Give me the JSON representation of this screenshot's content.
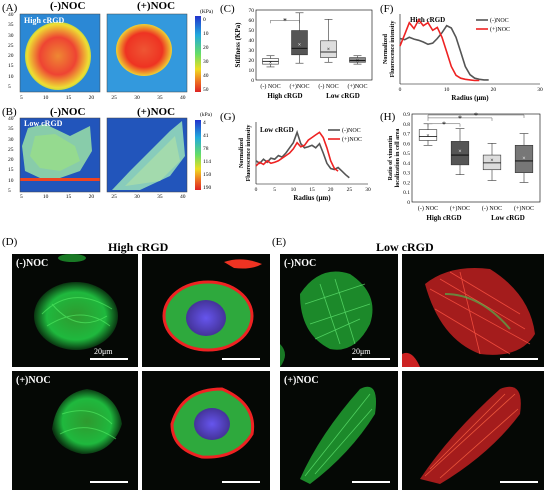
{
  "panels": {
    "A": {
      "label": "(A)",
      "title_left": "(-)NOC",
      "title_right": "(+)NOC",
      "inset": "High cRGD",
      "unit": "(KPa)",
      "colorbar_ticks": [
        "0",
        "10",
        "20",
        "30",
        "40",
        "50"
      ],
      "axis_ticks_x": [
        "5",
        "10",
        "15",
        "20",
        "25",
        "30",
        "35",
        "40"
      ],
      "axis_ticks_y": [
        "40",
        "35",
        "30",
        "25",
        "20",
        "15",
        "10",
        "5"
      ]
    },
    "B": {
      "label": "(B)",
      "title_left": "(-)NOC",
      "title_right": "(+)NOC",
      "inset": "Low cRGD",
      "unit": "(kPa)",
      "colorbar_ticks": [
        "4",
        "41",
        "78",
        "114",
        "150",
        "190"
      ],
      "axis_ticks_x": [
        "5",
        "10",
        "15",
        "20",
        "25",
        "30",
        "35",
        "40"
      ],
      "axis_ticks_y": [
        "40",
        "35",
        "30",
        "25",
        "20",
        "15",
        "10",
        "5"
      ]
    },
    "D": {
      "label": "(D)",
      "title": "High cRGD",
      "row_top": "(-)NOC",
      "row_bottom": "(+)NOC",
      "scale": "20μm"
    },
    "E": {
      "label": "(E)",
      "title": "Low cRGD",
      "row_top": "(-)NOC",
      "row_bottom": "(+)NOC",
      "scale": "20μm"
    }
  },
  "chart_data": [
    {
      "panel": "(C)",
      "type": "box",
      "ylabel": "Stiffness (KPa)",
      "ylim": [
        0,
        75
      ],
      "yticks": [
        "0",
        "10",
        "20",
        "30",
        "40",
        "50",
        "60",
        "70"
      ],
      "categories": [
        "(-) NOC",
        "(+)NOC",
        "(-) NOC",
        "(+)NOC"
      ],
      "groups": [
        "High cRGD",
        "Low cRGD"
      ],
      "significance": "*",
      "boxes": [
        {
          "min": 14,
          "q1": 17,
          "median": 20,
          "q3": 23,
          "max": 26,
          "mean": 19,
          "color": "#ffffff"
        },
        {
          "min": 18,
          "q1": 27,
          "median": 34,
          "q3": 53,
          "max": 72,
          "mean": 38,
          "color": "#555555"
        },
        {
          "min": 19,
          "q1": 24,
          "median": 30,
          "q3": 42,
          "max": 65,
          "mean": 33,
          "color": "#dddddd"
        },
        {
          "min": 17,
          "q1": 19,
          "median": 21,
          "q3": 24,
          "max": 26,
          "mean": 21,
          "color": "#888888"
        }
      ]
    },
    {
      "panel": "(F)",
      "type": "line",
      "title": "High cRGD",
      "ylabel": "Normalized Fluorescence intensity",
      "xlabel": "Radius (μm)",
      "xlim": [
        0,
        30
      ],
      "ylim": [
        0,
        1.2
      ],
      "xticks": [
        "0",
        "10",
        "20",
        "30"
      ],
      "series": [
        {
          "name": "(-)NOC",
          "color": "#555555",
          "x": [
            0,
            1,
            2,
            3,
            4,
            5,
            6,
            7,
            8,
            9,
            10,
            11,
            12,
            13,
            14,
            15,
            16,
            17,
            18,
            19
          ],
          "y": [
            0.78,
            0.76,
            0.8,
            0.77,
            0.75,
            0.72,
            0.68,
            0.7,
            0.78,
            0.88,
            1.0,
            0.96,
            0.8,
            0.55,
            0.3,
            0.16,
            0.1,
            0.08,
            0.07,
            0.07
          ]
        },
        {
          "name": "(+)NOC",
          "color": "#ee2222",
          "x": [
            0,
            1,
            2,
            3,
            4,
            5,
            6,
            7,
            8,
            9,
            10,
            11,
            12,
            13,
            14,
            15,
            16,
            17
          ],
          "y": [
            0.65,
            0.85,
            1.05,
            0.95,
            1.1,
            1.0,
            1.05,
            0.92,
            0.97,
            0.8,
            0.55,
            0.3,
            0.15,
            0.1,
            0.08,
            0.07,
            0.06,
            0.06
          ]
        }
      ]
    },
    {
      "panel": "(G)",
      "type": "line",
      "title": "Low cRGD",
      "ylabel": "Normalized Fluorescence intensity",
      "xlabel": "Radius (μm)",
      "xlim": [
        0,
        30
      ],
      "ylim": [
        0,
        1.2
      ],
      "xticks": [
        "0",
        "5",
        "10",
        "15",
        "20",
        "25",
        "30"
      ],
      "series": [
        {
          "name": "(-)NOC",
          "color": "#555555",
          "x": [
            0,
            1,
            2,
            3,
            4,
            5,
            6,
            7,
            8,
            9,
            10,
            11,
            12,
            13,
            14,
            15,
            16,
            17,
            18,
            19,
            20,
            21,
            22,
            23,
            24,
            25
          ],
          "y": [
            0.45,
            0.4,
            0.48,
            0.42,
            0.5,
            0.48,
            0.55,
            0.52,
            0.6,
            0.7,
            0.8,
            1.0,
            0.78,
            0.7,
            0.72,
            0.75,
            0.7,
            0.78,
            0.6,
            0.4,
            0.3,
            0.28,
            0.32,
            0.25,
            0.18,
            0.12
          ]
        },
        {
          "name": "(+)NOC",
          "color": "#ee2222",
          "x": [
            0,
            1,
            2,
            3,
            4,
            5,
            6,
            7,
            8,
            9,
            10,
            11,
            12,
            13,
            14,
            15,
            16,
            17,
            18,
            19,
            20,
            21,
            22
          ],
          "y": [
            0.35,
            0.42,
            0.38,
            0.45,
            0.4,
            0.42,
            0.45,
            0.5,
            0.55,
            0.6,
            0.68,
            0.8,
            0.72,
            0.75,
            0.85,
            0.9,
            0.95,
            1.0,
            0.9,
            0.7,
            0.45,
            0.3,
            0.25
          ]
        }
      ]
    },
    {
      "panel": "(H)",
      "type": "box",
      "ylabel": "Ratio of vimentin localization in cell area",
      "ylim": [
        0,
        0.9
      ],
      "yticks": [
        "0",
        "0.1",
        "0.2",
        "0.3",
        "0.4",
        "0.5",
        "0.6",
        "0.7",
        "0.8",
        "0.9"
      ],
      "categories": [
        "(-) NOC",
        "(+)NOC",
        "(-) NOC",
        "(+)NOC"
      ],
      "groups": [
        "High cRGD",
        "Low cRGD"
      ],
      "significance": "*",
      "boxes": [
        {
          "min": 0.58,
          "q1": 0.63,
          "median": 0.67,
          "q3": 0.74,
          "max": 0.8,
          "mean": 0.68,
          "color": "#ffffff"
        },
        {
          "min": 0.28,
          "q1": 0.38,
          "median": 0.48,
          "q3": 0.62,
          "max": 0.75,
          "mean": 0.52,
          "color": "#555555"
        },
        {
          "min": 0.22,
          "q1": 0.33,
          "median": 0.4,
          "q3": 0.48,
          "max": 0.6,
          "mean": 0.43,
          "color": "#dddddd"
        },
        {
          "min": 0.2,
          "q1": 0.3,
          "median": 0.42,
          "q3": 0.58,
          "max": 0.7,
          "mean": 0.45,
          "color": "#777777"
        }
      ]
    }
  ]
}
